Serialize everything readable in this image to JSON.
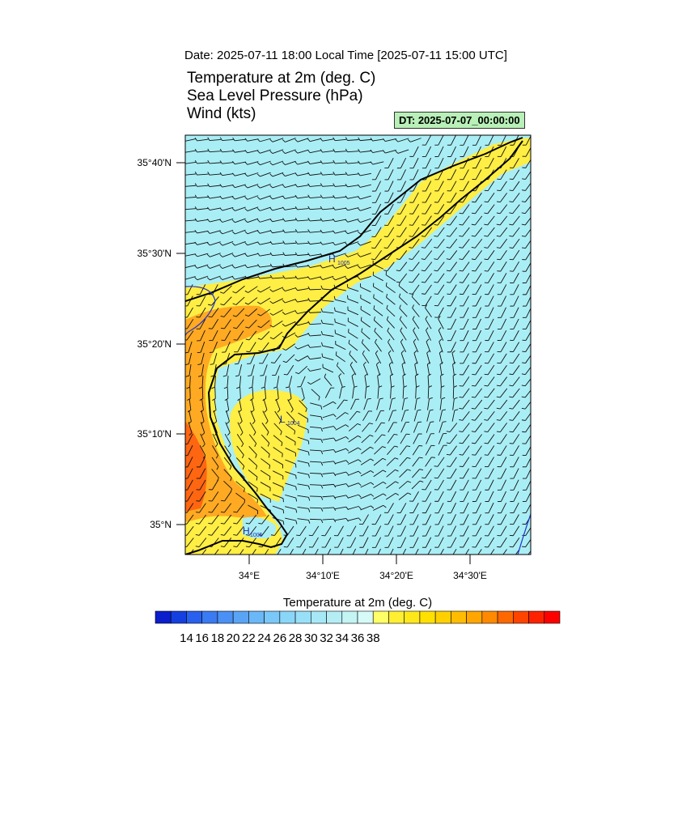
{
  "header": {
    "date_line": "Date: 2025-07-11  18:00 Local Time [2025-07-11  15:00 UTC]",
    "fields": [
      "Temperature at 2m   (deg. C)",
      "Sea Level Pressure   (hPa)",
      "Wind   (kts)"
    ],
    "dt_label": "DT: 2025-07-07_00:00:00"
  },
  "map": {
    "lat_labels": [
      "35°40'N",
      "35°30'N",
      "35°20'N",
      "35°10'N",
      "35°N"
    ],
    "lon_labels": [
      "34°E",
      "34°10'E",
      "34°20'E",
      "34°30'E"
    ],
    "pressure_centers": [
      {
        "type": "H",
        "value": "1005"
      },
      {
        "type": "L",
        "value": "1004"
      },
      {
        "type": "H",
        "value": "1005"
      }
    ],
    "colors": {
      "cool": "#aaeef5",
      "warm": "#ffee44",
      "hot": "#ffaa22",
      "hotter": "#ff6611",
      "border": "#000000",
      "isobar": "#2233cc"
    }
  },
  "colorbar": {
    "title": "Temperature at 2m  (deg. C)",
    "tick_labels": [
      "14",
      "16",
      "18",
      "20",
      "22",
      "24",
      "26",
      "28",
      "30",
      "32",
      "34",
      "36",
      "38"
    ],
    "colors": [
      "#0a1ecc",
      "#1540e0",
      "#2a60ee",
      "#3a7af2",
      "#4a90f5",
      "#5aa4f6",
      "#6ab8f8",
      "#7ac8f8",
      "#8ad6f8",
      "#98e0f8",
      "#a6e8f6",
      "#b4eef4",
      "#c4f4f4",
      "#d6faf8",
      "#ffff66",
      "#ffef33",
      "#ffe81a",
      "#ffe000",
      "#ffd000",
      "#ffbc00",
      "#ffa600",
      "#ff8a00",
      "#ff6800",
      "#ff4400",
      "#ff2200",
      "#ff0000"
    ]
  }
}
